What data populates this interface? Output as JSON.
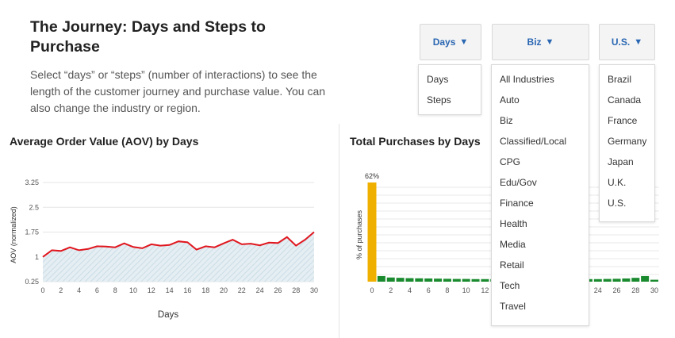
{
  "header": {
    "title": "The Journey: Days and Steps to Purchase",
    "description": "Select “days” or “steps” (number of interactions) to see the length of the customer journey and purchase value. You can also change the industry or region."
  },
  "dropdowns": {
    "metric": {
      "label": "Days",
      "caret": "▼",
      "options": [
        "Days",
        "Steps"
      ]
    },
    "industry": {
      "label": "Biz",
      "caret": "▼",
      "options": [
        "All Industries",
        "Auto",
        "Biz",
        "Classified/Local",
        "CPG",
        "Edu/Gov",
        "Finance",
        "Health",
        "Media",
        "Retail",
        "Tech",
        "Travel"
      ]
    },
    "region": {
      "label": "U.S.",
      "caret": "▼",
      "options": [
        "Brazil",
        "Canada",
        "France",
        "Germany",
        "Japan",
        "U.K.",
        "U.S."
      ]
    }
  },
  "colors": {
    "aov_line": "#e0161e",
    "aov_fill": "#d7e6ee",
    "bar_first": "#f0b000",
    "bar_rest": "#1a8a2e",
    "link_blue": "#2a67b3"
  },
  "chart_data": [
    {
      "type": "area",
      "title": "Average Order Value (AOV) by Days",
      "xlabel": "Days",
      "ylabel": "AOV (normalized)",
      "x_ticks": [
        "0",
        "2",
        "4",
        "6",
        "8",
        "10",
        "12",
        "14",
        "16",
        "18",
        "20",
        "22",
        "24",
        "26",
        "28",
        "30"
      ],
      "y_ticks": [
        "3.25",
        "2.5",
        "1.75",
        "1",
        "0.25"
      ],
      "ylim": [
        0.25,
        3.25
      ],
      "xlim": [
        0,
        30
      ],
      "grid": true,
      "series": [
        {
          "x": [
            0,
            1,
            2,
            3,
            4,
            5,
            6,
            7,
            8,
            9,
            10,
            11,
            12,
            13,
            14,
            15,
            16,
            17,
            18,
            19,
            20,
            21,
            22,
            23,
            24,
            25,
            26,
            27,
            28,
            29,
            30
          ],
          "values": [
            1.0,
            1.2,
            1.18,
            1.29,
            1.2,
            1.24,
            1.32,
            1.31,
            1.29,
            1.41,
            1.3,
            1.26,
            1.38,
            1.34,
            1.36,
            1.47,
            1.44,
            1.22,
            1.32,
            1.29,
            1.41,
            1.52,
            1.38,
            1.4,
            1.35,
            1.43,
            1.42,
            1.6,
            1.34,
            1.52,
            1.75
          ]
        }
      ]
    },
    {
      "type": "bar",
      "title": "Total Purchases by Days",
      "ylabel": "% of purchases",
      "data_label": "62%",
      "x_ticks_visible": [
        "0",
        "2",
        "4",
        "6",
        "8",
        "10",
        "12",
        "24",
        "26",
        "28",
        "30"
      ],
      "categories": [
        "0",
        "1",
        "2",
        "3",
        "4",
        "5",
        "6",
        "7",
        "8",
        "9",
        "10",
        "11",
        "12",
        "13",
        "14",
        "15",
        "16",
        "17",
        "18",
        "19",
        "20",
        "21",
        "22",
        "23",
        "24",
        "25",
        "26",
        "27",
        "28",
        "29",
        "30"
      ],
      "values": [
        62,
        3.5,
        2.6,
        2.4,
        2.2,
        2.1,
        2.0,
        1.9,
        1.8,
        1.7,
        1.7,
        1.6,
        1.6,
        1.6,
        1.5,
        1.5,
        1.5,
        1.4,
        1.4,
        1.4,
        1.4,
        1.4,
        1.5,
        1.6,
        1.6,
        1.7,
        1.8,
        2.0,
        2.4,
        3.5,
        1.2
      ],
      "ylim": [
        0,
        62
      ],
      "grid": true
    }
  ]
}
